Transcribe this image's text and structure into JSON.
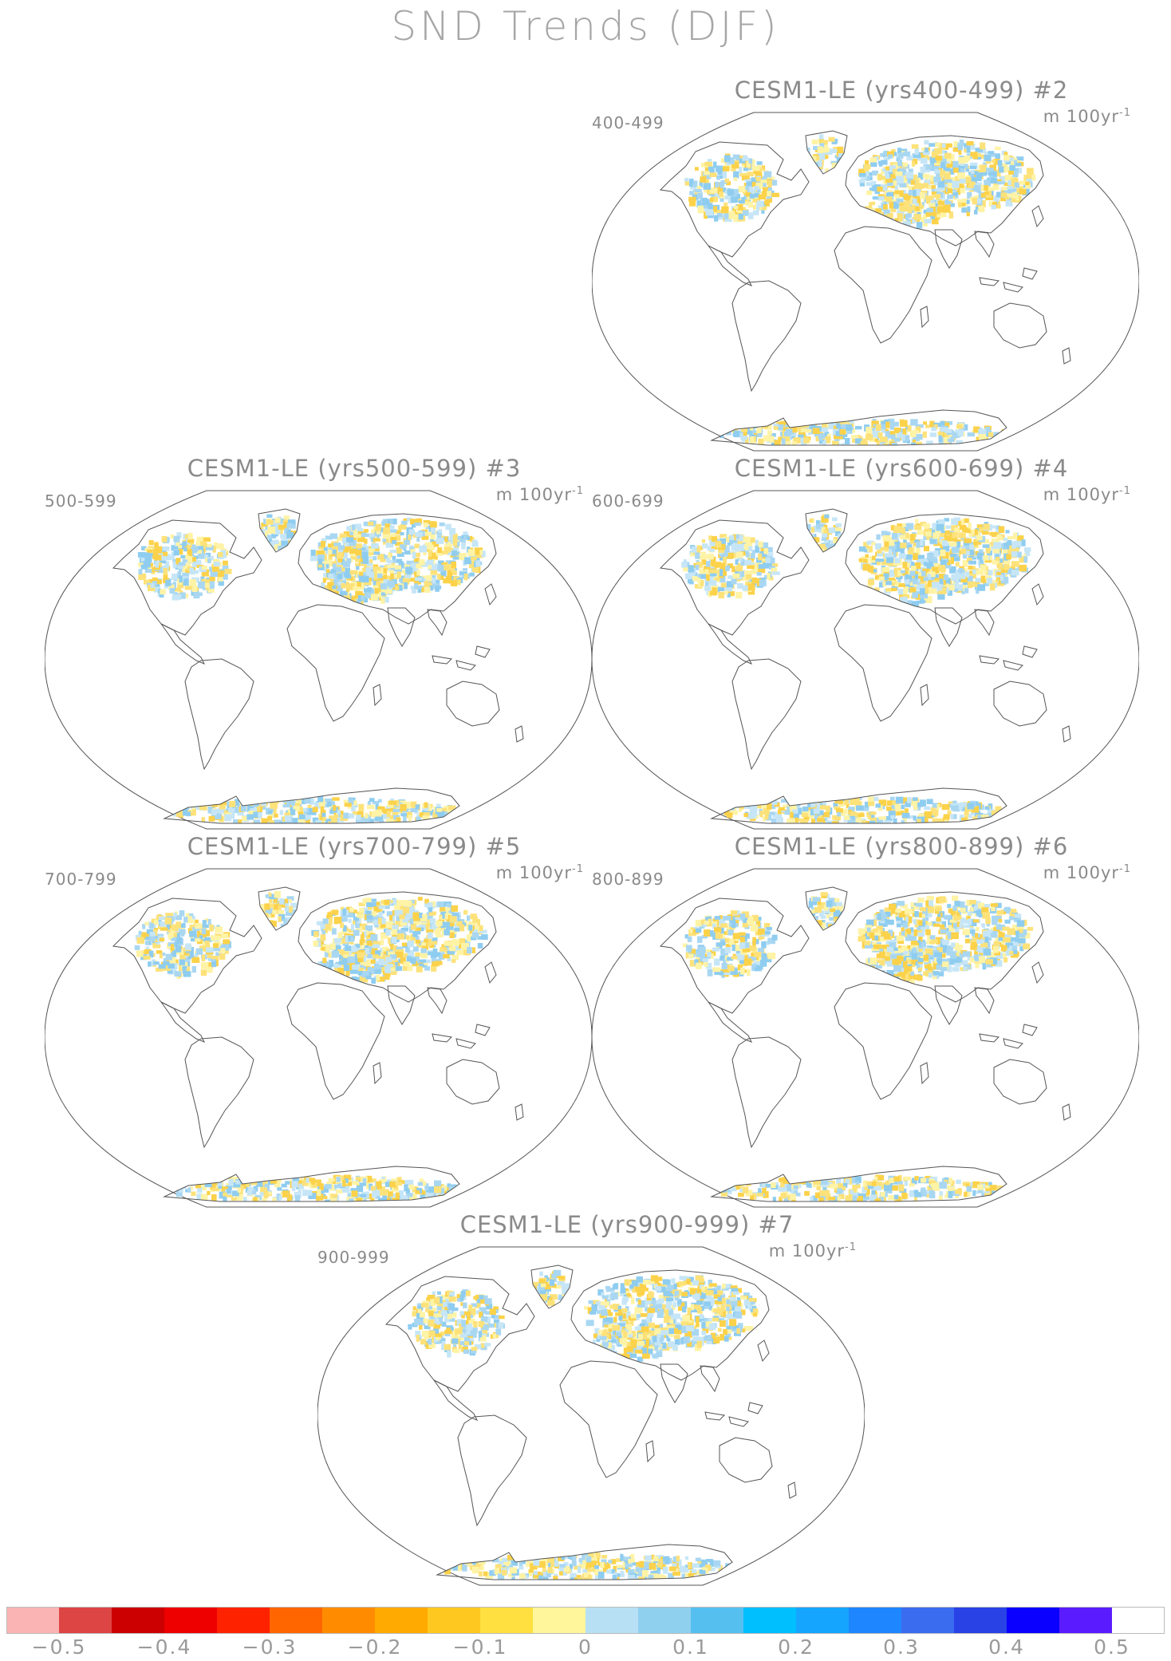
{
  "title": "SND Trends (DJF)",
  "panels": [
    {
      "title": "CESM1-LE (yrs400-499) #2",
      "period": "400-499",
      "units": "m 100yr",
      "units_exp": "-1"
    },
    {
      "title": "CESM1-LE (yrs500-599) #3",
      "period": "500-599",
      "units": "m 100yr",
      "units_exp": "-1"
    },
    {
      "title": "CESM1-LE (yrs600-699) #4",
      "period": "600-699",
      "units": "m 100yr",
      "units_exp": "-1"
    },
    {
      "title": "CESM1-LE (yrs700-799) #5",
      "period": "700-799",
      "units": "m 100yr",
      "units_exp": "-1"
    },
    {
      "title": "CESM1-LE (yrs800-899) #6",
      "period": "800-899",
      "units": "m 100yr",
      "units_exp": "-1"
    },
    {
      "title": "CESM1-LE (yrs900-999) #7",
      "period": "900-999",
      "units": "m 100yr",
      "units_exp": "-1"
    }
  ],
  "colorbar": {
    "colors": [
      "#fbb4b4",
      "#dd4444",
      "#cc0000",
      "#ee0000",
      "#ff2200",
      "#ff6600",
      "#ff8c00",
      "#ffaa00",
      "#ffc820",
      "#ffe040",
      "#fff59a",
      "#b8e0f4",
      "#8fd0ef",
      "#55c0f0",
      "#00bfff",
      "#15a5ff",
      "#1e86ff",
      "#3a6cf0",
      "#2842e6",
      "#0a00ff",
      "#5a1cff",
      "#ffffff"
    ],
    "tick_labels": [
      "−0.5",
      "−0.4",
      "−0.3",
      "−0.2",
      "−0.1",
      "0",
      "0.1",
      "0.2",
      "0.3",
      "0.4",
      "0.5"
    ]
  },
  "colors": {
    "land_outline": "#555555",
    "ocean": "#ffffff",
    "pos": "#a9d7f2",
    "neg": "#fde27a"
  }
}
